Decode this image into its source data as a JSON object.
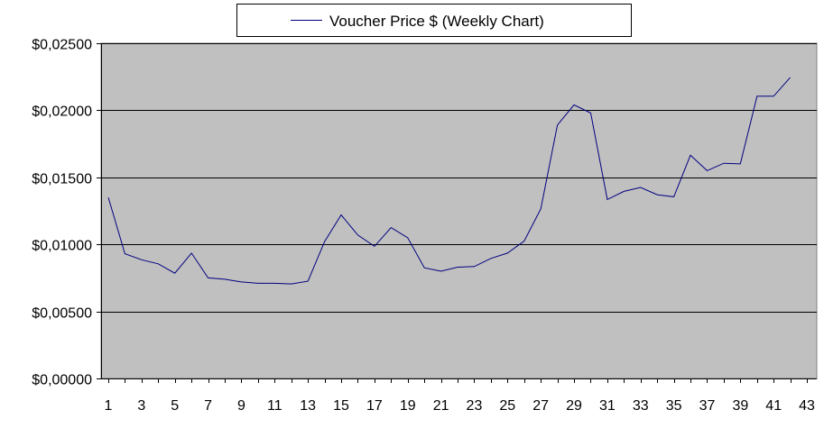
{
  "chart_data": {
    "type": "line",
    "legend": {
      "label": "Voucher Price $ (Weekly Chart)",
      "placement": "top-center"
    },
    "x": [
      1,
      2,
      3,
      4,
      5,
      6,
      7,
      8,
      9,
      10,
      11,
      12,
      13,
      14,
      15,
      16,
      17,
      18,
      19,
      20,
      21,
      22,
      23,
      24,
      25,
      26,
      27,
      28,
      29,
      30,
      31,
      32,
      33,
      34,
      35,
      36,
      37,
      38,
      39,
      40,
      41,
      42
    ],
    "series": [
      {
        "name": "Voucher Price $ (Weekly Chart)",
        "values": [
          0.0135,
          0.0093,
          0.00885,
          0.00855,
          0.00785,
          0.00935,
          0.0075,
          0.0074,
          0.0072,
          0.0071,
          0.0071,
          0.00705,
          0.00725,
          0.0102,
          0.0122,
          0.0107,
          0.00985,
          0.01125,
          0.0105,
          0.00825,
          0.008,
          0.0083,
          0.00835,
          0.00895,
          0.00935,
          0.01025,
          0.01265,
          0.0189,
          0.0204,
          0.0198,
          0.01335,
          0.01395,
          0.01425,
          0.0137,
          0.01355,
          0.01665,
          0.0155,
          0.01605,
          0.016,
          0.02105,
          0.02105,
          0.02245
        ]
      }
    ],
    "ylim": [
      0,
      0.025
    ],
    "yticks": [
      0,
      0.005,
      0.01,
      0.015,
      0.02,
      0.025
    ],
    "ytick_labels": [
      "$0,00000",
      "$0,00500",
      "$0,01000",
      "$0,01500",
      "$0,02000",
      "$0,02500"
    ],
    "xlim": [
      1,
      43
    ],
    "xticks": [
      1,
      3,
      5,
      7,
      9,
      11,
      13,
      15,
      17,
      19,
      21,
      23,
      25,
      27,
      29,
      31,
      33,
      35,
      37,
      39,
      41,
      43
    ],
    "xtick_labels": [
      "1",
      "3",
      "5",
      "7",
      "9",
      "11",
      "13",
      "15",
      "17",
      "19",
      "21",
      "23",
      "25",
      "27",
      "29",
      "31",
      "33",
      "35",
      "37",
      "39",
      "41",
      "43"
    ],
    "grid": "horizontal",
    "colors": {
      "plot_background": "#c0c0c0",
      "line": "#000080",
      "grid": "#000000"
    }
  }
}
